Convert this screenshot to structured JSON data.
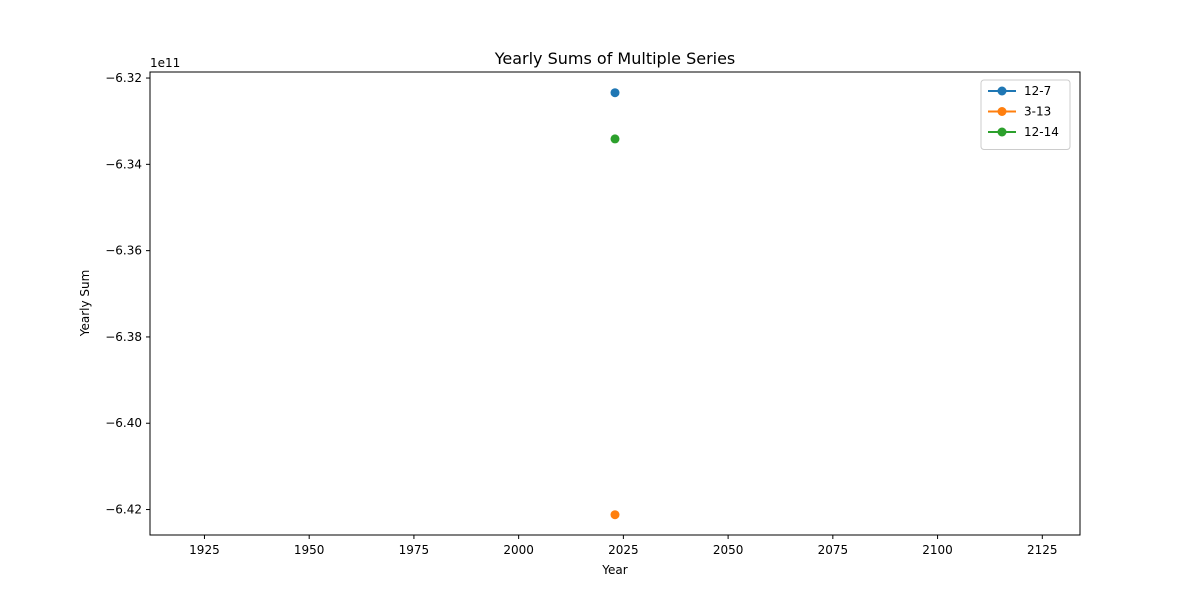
{
  "chart_data": {
    "type": "scatter",
    "title": "Yearly Sums of Multiple Series",
    "xlabel": "Year",
    "ylabel": "Yearly Sum",
    "y_offset_label": "1e11",
    "xlim": [
      1912,
      2134
    ],
    "ylim": [
      -6.4259,
      -6.3186
    ],
    "x_ticks": [
      1925,
      1950,
      1975,
      2000,
      2025,
      2050,
      2075,
      2100,
      2125
    ],
    "x_tick_labels": [
      "1925",
      "1950",
      "1975",
      "2000",
      "2025",
      "2050",
      "2075",
      "2100",
      "2125"
    ],
    "y_ticks": [
      -6.32,
      -6.34,
      -6.36,
      -6.38,
      -6.4,
      -6.42
    ],
    "y_tick_labels": [
      "−6.32",
      "−6.34",
      "−6.36",
      "−6.38",
      "−6.40",
      "−6.42"
    ],
    "grid": false,
    "legend_position": "top-right",
    "series": [
      {
        "name": "12-7",
        "color": "#1f77b4",
        "points": [
          {
            "x": 2023,
            "y": -6.3234
          }
        ]
      },
      {
        "name": "3-13",
        "color": "#ff7f0e",
        "points": [
          {
            "x": 2023,
            "y": -6.4212
          }
        ]
      },
      {
        "name": "12-14",
        "color": "#2ca02c",
        "points": [
          {
            "x": 2023,
            "y": -6.3341
          }
        ]
      }
    ]
  }
}
